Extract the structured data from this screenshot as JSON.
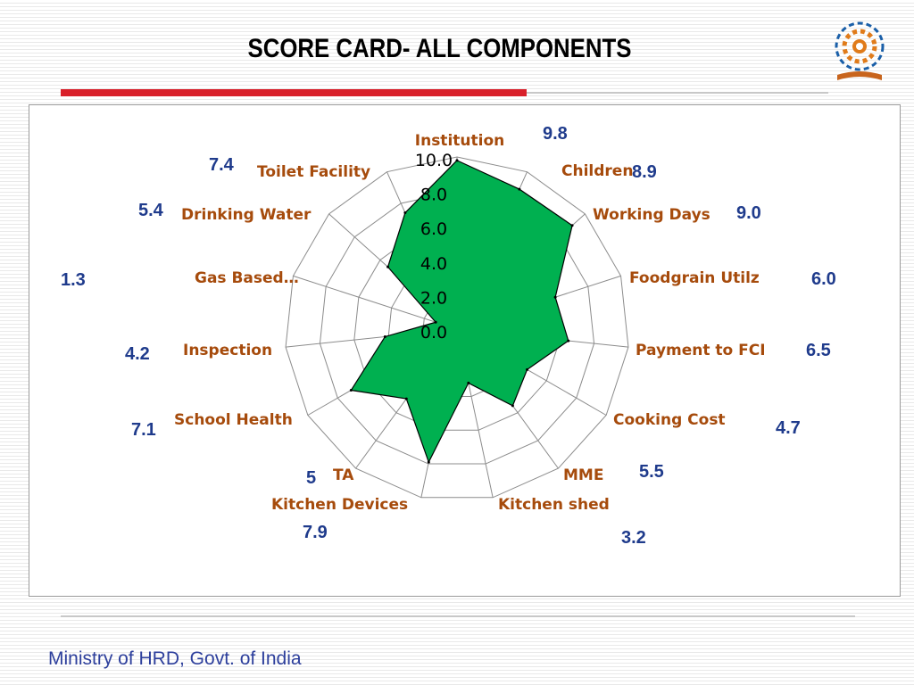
{
  "slide": {
    "title": "SCORE CARD- ALL COMPONENTS",
    "footer": "Ministry of HRD, Govt. of India"
  },
  "logo": {
    "icon": "mid-day-meal-logo-icon"
  },
  "colors": {
    "fill": "#00b050",
    "category_label": "#a64b0c",
    "value_label": "#1f3b8c",
    "grid": "#8c8c8c",
    "title_rule": "#d9202a",
    "footer": "#2d3f9c"
  },
  "chart_data": {
    "type": "radar",
    "title": "",
    "categories": [
      "Institution",
      "Children",
      "Working Days",
      "Foodgrain Utilz",
      "Payment to FCI",
      "Cooking Cost",
      "MME",
      "Kitchen shed",
      "Kitchen Devices",
      "TA",
      "School Health",
      "Inspection",
      "Gas Based…",
      "Drinking Water",
      "Toilet Facility"
    ],
    "values": [
      9.8,
      8.9,
      9.0,
      6.0,
      6.5,
      4.7,
      5.5,
      3.2,
      7.9,
      5,
      7.1,
      4.2,
      1.3,
      5.4,
      7.4
    ],
    "value_labels": [
      "9.8",
      "8.9",
      "9.0",
      "6.0",
      "6.5",
      "4.7",
      "5.5",
      "3.2",
      "7.9",
      "5",
      "7.1",
      "4.2",
      "1.3",
      "5.4",
      "7.4"
    ],
    "axis": {
      "min": 0,
      "max": 10,
      "ticks": [
        "0.0",
        "2.0",
        "4.0",
        "6.0",
        "8.0",
        "10.0"
      ]
    },
    "grid": true,
    "legend": "none"
  }
}
